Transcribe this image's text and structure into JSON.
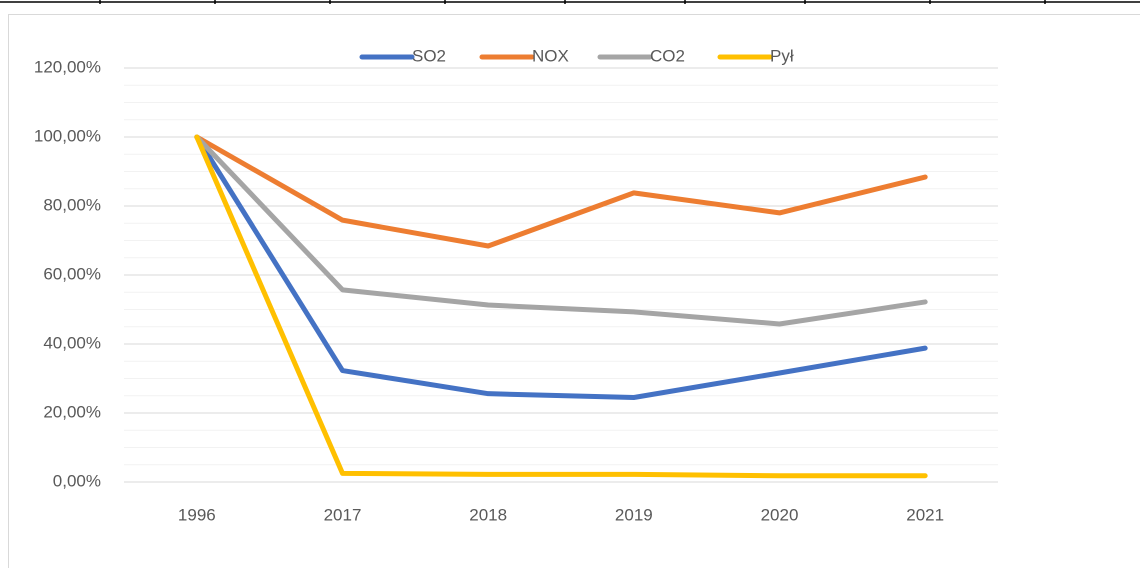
{
  "chart_data": {
    "type": "line",
    "categories": [
      "1996",
      "2017",
      "2018",
      "2019",
      "2020",
      "2021"
    ],
    "series": [
      {
        "name": "SO2",
        "color": "#4472c4",
        "values": [
          100,
          32.3,
          25.6,
          24.5,
          31.6,
          38.8
        ]
      },
      {
        "name": "NOX",
        "color": "#ed7d31",
        "values": [
          100,
          75.9,
          68.4,
          83.8,
          78.0,
          88.4
        ]
      },
      {
        "name": "CO2",
        "color": "#a5a5a5",
        "values": [
          100,
          55.7,
          51.3,
          49.3,
          45.8,
          52.2
        ]
      },
      {
        "name": "Pył",
        "color": "#ffc000",
        "values": [
          100,
          2.5,
          2.2,
          2.2,
          1.8,
          1.8
        ]
      }
    ],
    "ylim": [
      0,
      120
    ],
    "yticks": [
      {
        "value": 0,
        "label": "0,00%"
      },
      {
        "value": 20,
        "label": "20,00%"
      },
      {
        "value": 40,
        "label": "40,00%"
      },
      {
        "value": 60,
        "label": "60,00%"
      },
      {
        "value": 80,
        "label": "80,00%"
      },
      {
        "value": 100,
        "label": "100,00%"
      },
      {
        "value": 120,
        "label": "120,00%"
      }
    ],
    "minor_yticks": [
      5,
      10,
      15,
      25,
      30,
      35,
      45,
      50,
      55,
      65,
      70,
      75,
      85,
      90,
      95,
      105,
      110,
      115
    ],
    "grid": true,
    "legend": "top"
  }
}
